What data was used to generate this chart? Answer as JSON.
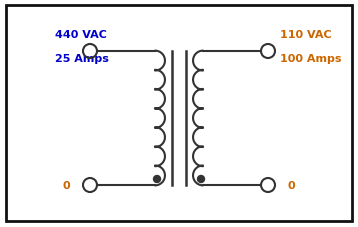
{
  "title_left_line1": "440 VAC",
  "title_left_line2": "25 Amps",
  "title_right_line1": "110 VAC",
  "title_right_line2": "100 Amps",
  "label_bottom_left": "0",
  "label_bottom_right": "0",
  "left_color": "#0000CC",
  "right_color": "#CC6600",
  "line_color": "#333333",
  "bg_color": "#ffffff",
  "border_color": "#111111",
  "num_bumps": 7,
  "figwidth": 3.58,
  "figheight": 2.28,
  "dpi": 100
}
